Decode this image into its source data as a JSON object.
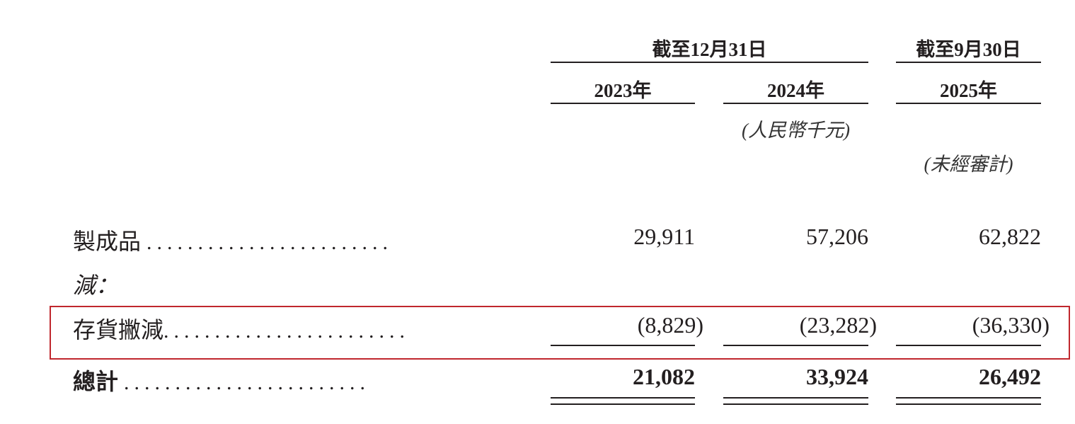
{
  "header": {
    "group1": "截至12月31日",
    "group2": "截至9月30日",
    "years": [
      "2023年",
      "2024年",
      "2025年"
    ],
    "unit_note": "(人民幣千元)",
    "unaudited_note": "(未經審計)"
  },
  "rows": [
    {
      "label": "製成品",
      "dots": "........................",
      "values": [
        "29,911",
        "57,206",
        "62,822"
      ]
    },
    {
      "label": "減：",
      "dots": "",
      "values": []
    },
    {
      "label": "存貨撇減",
      "dots": "........................",
      "values": [
        "(8,829)",
        "(23,282)",
        "(36,330)"
      ]
    },
    {
      "label": "總計",
      "dots": "........................",
      "values": [
        "21,082",
        "33,924",
        "26,492"
      ]
    }
  ],
  "highlight_color": "#c0272d"
}
